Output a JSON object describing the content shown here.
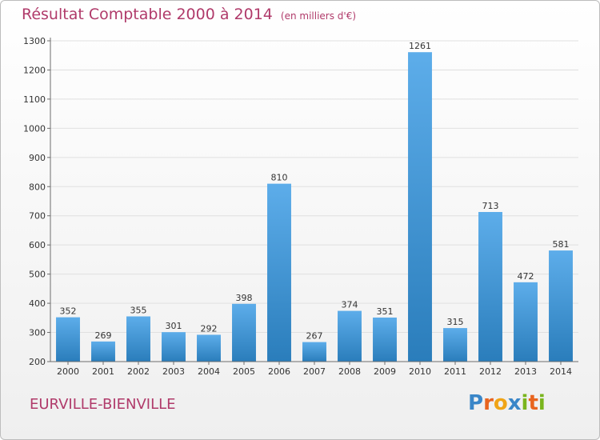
{
  "title": "Résultat Comptable 2000 à 2014",
  "subtitle": "(en milliers d'€)",
  "place": "EURVILLE-BIENVILLE",
  "logo": {
    "text": "Proxiti",
    "letters": [
      {
        "ch": "P",
        "color": "#3a86c8"
      },
      {
        "ch": "r",
        "color": "#e8641e"
      },
      {
        "ch": "o",
        "color": "#f0a416"
      },
      {
        "ch": "x",
        "color": "#3a86c8"
      },
      {
        "ch": "i",
        "color": "#7ab51d"
      },
      {
        "ch": "t",
        "color": "#e8641e"
      },
      {
        "ch": "i",
        "color": "#7ab51d"
      }
    ]
  },
  "colors": {
    "bar_top": "#5dadea",
    "bar_bottom": "#2a7dbb",
    "grid": "#e0e0e0",
    "axis": "#6d6d6d",
    "text": "#333333",
    "title": "#b03a6a"
  },
  "chart_data": {
    "type": "bar",
    "categories": [
      "2000",
      "2001",
      "2002",
      "2003",
      "2004",
      "2005",
      "2006",
      "2007",
      "2008",
      "2009",
      "2010",
      "2011",
      "2012",
      "2013",
      "2014"
    ],
    "values": [
      352,
      269,
      355,
      301,
      292,
      398,
      810,
      267,
      374,
      351,
      1261,
      315,
      713,
      472,
      581
    ],
    "ylim": [
      200,
      1300
    ],
    "yticks": [
      200,
      300,
      400,
      500,
      600,
      700,
      800,
      900,
      1000,
      1100,
      1200,
      1300
    ],
    "grid": true,
    "legend": "none"
  }
}
